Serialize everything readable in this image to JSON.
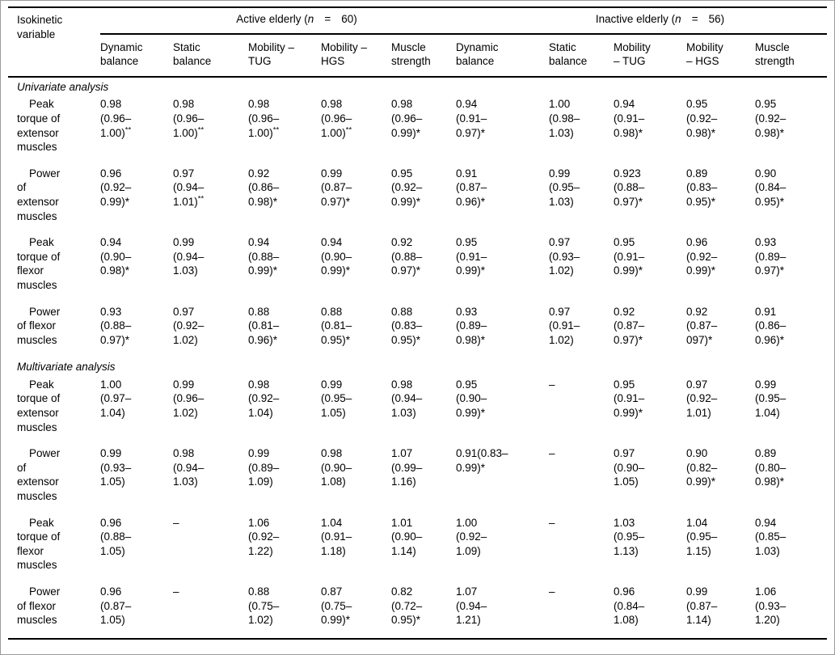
{
  "table": {
    "row_header": "Isokinetic\nvariable",
    "groups": [
      {
        "prefix": "Active elderly (",
        "n": "n",
        "equals": "=",
        "count": "60",
        "suffix": ")"
      },
      {
        "prefix": "Inactive elderly (",
        "n": "n",
        "equals": "=",
        "count": "56",
        "suffix": ")"
      }
    ],
    "subcolumns": [
      "Dynamic\nbalance",
      "Static\nbalance",
      "Mobility –\nTUG",
      "Mobility –\nHGS",
      "Muscle\nstrength",
      "Dynamic\nbalance",
      "Static\nbalance",
      "Mobility\n– TUG",
      "Mobility\n– HGS",
      "Muscle\nstrength"
    ],
    "sections": [
      {
        "title": "Univariate analysis",
        "rows": [
          {
            "label": "Peak\ntorque of\nextensor\nmuscles",
            "cells": [
              "0.98\n(0.96–\n1.00)**",
              "0.98\n(0.96–\n1.00)**",
              "0.98\n(0.96–\n1.00)**",
              "0.98\n(0.96–\n1.00)**",
              "0.98\n(0.96–\n0.99)*",
              "0.94\n(0.91–\n0.97)*",
              "1.00\n(0.98–\n1.03)",
              "0.94\n(0.91–\n0.98)*",
              "0.95\n(0.92–\n0.98)*",
              "0.95\n(0.92–\n0.98)*"
            ]
          },
          {
            "label": "Power\nof\nextensor\nmuscles",
            "cells": [
              "0.96\n(0.92–\n0.99)*",
              "0.97\n(0.94–\n1.01)**",
              "0.92\n(0.86–\n0.98)*",
              "0.99\n(0.87–\n0.97)*",
              "0.95\n(0.92–\n0.99)*",
              "0.91\n(0.87–\n0.96)*",
              "0.99\n(0.95–\n1.03)",
              "0.923\n(0.88–\n0.97)*",
              "0.89\n(0.83–\n0.95)*",
              "0.90\n(0.84–\n0.95)*"
            ]
          },
          {
            "label": "Peak\ntorque of\nflexor\nmuscles",
            "cells": [
              "0.94\n(0.90–\n0.98)*",
              "0.99\n(0.94–\n1.03)",
              "0.94\n(0.88–\n0.99)*",
              "0.94\n(0.90–\n0.99)*",
              "0.92\n(0.88–\n0.97)*",
              "0.95\n(0.91–\n0.99)*",
              "0.97\n(0.93–\n1.02)",
              "0.95\n(0.91–\n0.99)*",
              "0.96\n(0.92–\n0.99)*",
              "0.93\n(0.89–\n0.97)*"
            ]
          },
          {
            "label": "Power\nof flexor\nmuscles",
            "cells": [
              "0.93\n(0.88–\n0.97)*",
              "0.97\n(0.92–\n1.02)",
              "0.88\n(0.81–\n0.96)*",
              "0.88\n(0.81–\n0.95)*",
              "0.88\n(0.83–\n0.95)*",
              "0.93\n(0.89–\n0.98)*",
              "0.97\n(0.91–\n1.02)",
              "0.92\n(0.87–\n0.97)*",
              "0.92\n(0.87–\n097)*",
              "0.91\n(0.86–\n0.96)*"
            ]
          }
        ]
      },
      {
        "title": "Multivariate analysis",
        "rows": [
          {
            "label": "Peak\ntorque of\nextensor\nmuscles",
            "cells": [
              "1.00\n(0.97–\n1.04)",
              "0.99\n(0.96–\n1.02)",
              "0.98\n(0.92–\n1.04)",
              "0.99\n(0.95–\n1.05)",
              "0.98\n(0.94–\n1.03)",
              "0.95\n(0.90–\n0.99)*",
              "–",
              "0.95\n(0.91–\n0.99)*",
              "0.97\n(0.92–\n1.01)",
              "0.99\n(0.95–\n1.04)"
            ]
          },
          {
            "label": "Power\nof\nextensor\nmuscles",
            "cells": [
              "0.99\n(0.93–\n1.05)",
              "0.98\n(0.94–\n1.03)",
              "0.99\n(0.89–\n1.09)",
              "0.98\n(0.90–\n1.08)",
              "1.07\n(0.99–\n1.16)",
              "0.91(0.83–\n0.99)*",
              "–",
              "0.97\n(0.90–\n1.05)",
              "0.90\n(0.82–\n0.99)*",
              "0.89\n(0.80–\n0.98)*"
            ]
          },
          {
            "label": "Peak\ntorque of\nflexor\nmuscles",
            "cells": [
              "0.96\n(0.88–\n1.05)",
              "–",
              "1.06\n(0.92–\n1.22)",
              "1.04\n(0.91–\n1.18)",
              "1.01\n(0.90–\n1.14)",
              "1.00\n(0.92–\n1.09)",
              "–",
              "1.03\n(0.95–\n1.13)",
              "1.04\n(0.95–\n1.15)",
              "0.94\n(0.85–\n1.03)"
            ]
          },
          {
            "label": "Power\nof flexor\nmuscles",
            "cells": [
              "0.96\n(0.87–\n1.05)",
              "–",
              "0.88\n(0.75–\n1.02)",
              "0.87\n(0.75–\n0.99)*",
              "0.82\n(0.72–\n0.95)*",
              "1.07\n(0.94–\n1.21)",
              "–",
              "0.96\n(0.84–\n1.08)",
              "0.99\n(0.87–\n1.14)",
              "1.06\n(0.93–\n1.20)"
            ]
          }
        ]
      }
    ]
  }
}
